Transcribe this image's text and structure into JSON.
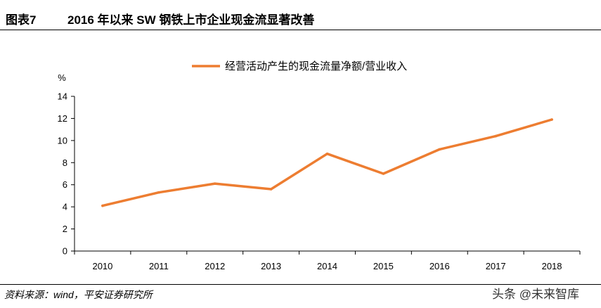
{
  "header": {
    "figure_number": "图表7",
    "title": "2016 年以来 SW 钢铁上市企业现金流显著改善"
  },
  "footer": {
    "source": "资料来源：wind，平安证券研究所",
    "watermark": "头条 @未来智库"
  },
  "colors": {
    "line": "#ED7D31",
    "axis": "#000000"
  },
  "chart_data": {
    "type": "line",
    "title": "",
    "xlabel": "",
    "ylabel": "%",
    "categories": [
      "2010",
      "2011",
      "2012",
      "2013",
      "2014",
      "2015",
      "2016",
      "2017",
      "2018"
    ],
    "ylim": [
      0,
      14
    ],
    "yticks": [
      0,
      2,
      4,
      6,
      8,
      10,
      12,
      14
    ],
    "grid": false,
    "legend_placement": "top",
    "series": [
      {
        "name": "经营活动产生的现金流量净额/营业收入",
        "values": [
          4.1,
          5.3,
          6.1,
          5.6,
          8.8,
          7.0,
          9.2,
          10.4,
          11.9
        ]
      }
    ]
  }
}
